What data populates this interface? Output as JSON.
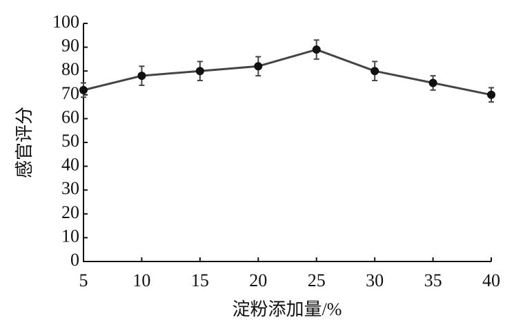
{
  "chart_data": {
    "type": "line",
    "x_label": "淀粉添加量/%",
    "y_label": "感官评分",
    "x": [
      5,
      10,
      15,
      20,
      25,
      30,
      35,
      40
    ],
    "series": [
      {
        "name": "感官评分",
        "color": "#111111",
        "values": [
          72,
          78,
          80,
          82,
          89,
          80,
          75,
          70
        ],
        "errors": [
          3,
          4,
          4,
          4,
          4,
          4,
          3,
          3
        ]
      }
    ],
    "xlim": [
      5,
      40
    ],
    "xticks": [
      5,
      10,
      15,
      20,
      25,
      30,
      35,
      40
    ],
    "ylim": [
      0,
      100
    ],
    "yticks": [
      0,
      10,
      20,
      30,
      40,
      50,
      60,
      70,
      80,
      90,
      100
    ],
    "grid": false
  }
}
